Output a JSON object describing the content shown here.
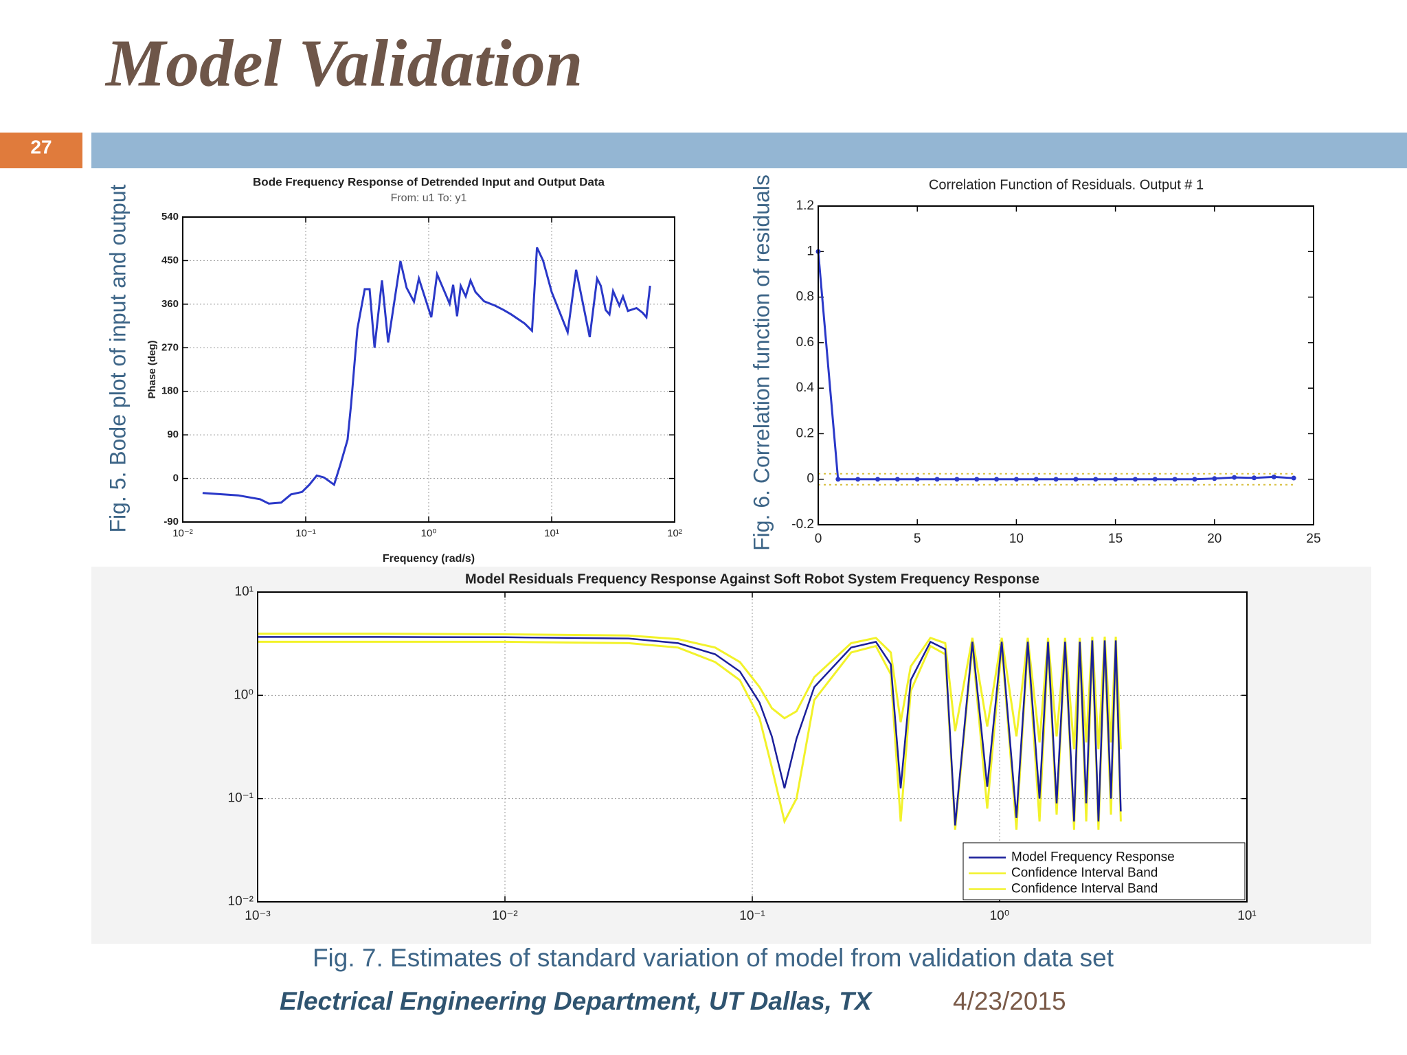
{
  "slide": {
    "title": "Model Validation",
    "number": 27,
    "figure_captions": [
      "Fig. 5. Bode plot of input and output",
      "Fig. 6. Correlation function of residuals",
      "Fig. 7. Estimates of standard variation of model from validation data set"
    ],
    "footer": "Electrical Engineering Department, UT Dallas, TX",
    "date": "4/23/2015"
  },
  "chart_data": [
    {
      "type": "line",
      "title": "Bode Frequency Response of Detrended Input and Output Data",
      "subtitle": "From: u1  To: y1",
      "x_label": "Frequency  (rad/s)",
      "y_label": "Phase (deg)",
      "xscale": "log",
      "grid": true,
      "xlim": [
        0.01,
        100
      ],
      "xticks": [
        {
          "value": 0.01,
          "label": "10⁻²"
        },
        {
          "value": 0.1,
          "label": "10⁻¹"
        },
        {
          "value": 1,
          "label": "10⁰"
        },
        {
          "value": 10,
          "label": "10¹"
        },
        {
          "value": 100,
          "label": "10²"
        }
      ],
      "ylim": [
        -90,
        540
      ],
      "yticks": [
        -90,
        0,
        90,
        180,
        270,
        360,
        450,
        540
      ],
      "x": [
        0.0145,
        0.0282,
        0.0427,
        0.0501,
        0.0631,
        0.0759,
        0.0933,
        0.107,
        0.123,
        0.141,
        0.17,
        0.191,
        0.219,
        0.234,
        0.263,
        0.302,
        0.331,
        0.363,
        0.417,
        0.468,
        0.589,
        0.661,
        0.759,
        0.832,
        1.05,
        1.17,
        1.35,
        1.48,
        1.58,
        1.7,
        1.82,
        2.0,
        2.19,
        2.4,
        2.82,
        3.47,
        4.07,
        4.68,
        6.03,
        6.92,
        7.59,
        8.51,
        10,
        13.5,
        15.8,
        20.4,
        23.4,
        25.1,
        27.5,
        29.5,
        31.6,
        35.5,
        38.0,
        41.7,
        49.0,
        55.0,
        58.9,
        63.1
      ],
      "series": [
        {
          "color": "#2a38c8",
          "values": [
            -30,
            -35,
            -43,
            -52,
            -50,
            -33,
            -28,
            -13,
            6,
            2,
            -13,
            28,
            80,
            154,
            309,
            391,
            391,
            270,
            409,
            281,
            449,
            394,
            365,
            413,
            333,
            422,
            385,
            361,
            400,
            335,
            398,
            376,
            409,
            385,
            366,
            357,
            348,
            339,
            320,
            305,
            477,
            450,
            385,
            302,
            431,
            292,
            413,
            398,
            348,
            339,
            387,
            357,
            376,
            346,
            352,
            342,
            333,
            398
          ]
        }
      ]
    },
    {
      "type": "line",
      "title": "Correlation Function of Residuals. Output # 1",
      "grid": false,
      "xlim": [
        0,
        25
      ],
      "xticks": [
        0,
        5,
        10,
        15,
        20,
        25
      ],
      "ylim": [
        -0.2,
        1.2
      ],
      "yticks": [
        -0.2,
        0,
        0.2,
        0.4,
        0.6,
        0.8,
        1,
        1.2
      ],
      "x": [
        0,
        1,
        2,
        3,
        4,
        5,
        6,
        7,
        8,
        9,
        10,
        11,
        12,
        13,
        14,
        15,
        16,
        17,
        18,
        19,
        20,
        21,
        22,
        23,
        24
      ],
      "series": [
        {
          "color": "#2a38c8",
          "marker": true,
          "values": [
            1,
            0,
            0,
            0,
            0,
            0,
            0,
            0,
            0,
            0,
            0,
            0,
            0,
            0,
            0,
            0,
            0,
            0,
            0,
            0,
            0.003,
            0.008,
            0.006,
            0.01,
            0.005
          ]
        },
        {
          "color": "#d8c040",
          "dashed": true,
          "values": [
            0.024,
            0.024,
            0.024,
            0.024,
            0.024,
            0.024,
            0.024,
            0.024,
            0.024,
            0.024,
            0.024,
            0.024,
            0.024,
            0.024,
            0.024,
            0.024,
            0.024,
            0.024,
            0.024,
            0.024,
            0.024,
            0.024,
            0.024,
            0.024,
            0.024
          ]
        },
        {
          "color": "#d8c040",
          "dashed": true,
          "values": [
            -0.024,
            -0.024,
            -0.024,
            -0.024,
            -0.024,
            -0.024,
            -0.024,
            -0.024,
            -0.024,
            -0.024,
            -0.024,
            -0.024,
            -0.024,
            -0.024,
            -0.024,
            -0.024,
            -0.024,
            -0.024,
            -0.024,
            -0.024,
            -0.024,
            -0.024,
            -0.024,
            -0.024,
            -0.024
          ]
        }
      ]
    },
    {
      "type": "line",
      "title": "Model Residuals Frequency Response Against Soft Robot System Frequency Response",
      "xscale": "log",
      "yscale": "log",
      "grid": true,
      "legend": "lower right",
      "xlim": [
        0.001,
        10
      ],
      "xticks": [
        {
          "value": 0.001,
          "label": "10⁻³"
        },
        {
          "value": 0.01,
          "label": "10⁻²"
        },
        {
          "value": 0.1,
          "label": "10⁻¹"
        },
        {
          "value": 1,
          "label": "10⁰"
        },
        {
          "value": 10,
          "label": "10¹"
        }
      ],
      "ylim": [
        0.01,
        10
      ],
      "yticks": [
        {
          "value": 0.01,
          "label": "10⁻²"
        },
        {
          "value": 0.1,
          "label": "10⁻¹"
        },
        {
          "value": 1,
          "label": "10⁰"
        },
        {
          "value": 10,
          "label": "10¹"
        }
      ],
      "x": [
        0.001,
        0.00316,
        0.01,
        0.0316,
        0.0501,
        0.0708,
        0.0891,
        0.107,
        0.12,
        0.135,
        0.151,
        0.178,
        0.251,
        0.316,
        0.363,
        0.398,
        0.437,
        0.525,
        0.603,
        0.661,
        0.776,
        0.891,
        1.02,
        1.17,
        1.3,
        1.45,
        1.57,
        1.7,
        1.84,
        2.0,
        2.11,
        2.24,
        2.37,
        2.51,
        2.66,
        2.82,
        2.95,
        3.09
      ],
      "series": [
        {
          "name": "Confidence Interval Band",
          "color": "#f2f22a",
          "values": [
            3.95,
            3.95,
            3.9,
            3.8,
            3.5,
            2.9,
            2.1,
            1.2,
            0.75,
            0.6,
            0.7,
            1.5,
            3.2,
            3.6,
            2.6,
            0.55,
            1.9,
            3.6,
            3.2,
            0.45,
            3.6,
            0.5,
            3.6,
            0.4,
            3.6,
            0.35,
            3.6,
            0.4,
            3.6,
            0.3,
            3.6,
            0.35,
            3.7,
            0.3,
            3.7,
            0.35,
            3.7,
            0.3
          ]
        },
        {
          "name": "Confidence Interval Band",
          "color": "#f2f22a",
          "values": [
            3.3,
            3.3,
            3.3,
            3.2,
            2.9,
            2.1,
            1.4,
            0.6,
            0.2,
            0.06,
            0.1,
            0.9,
            2.6,
            3.0,
            1.6,
            0.06,
            1.1,
            3.0,
            2.5,
            0.05,
            3.0,
            0.08,
            3.0,
            0.05,
            3.0,
            0.06,
            3.0,
            0.07,
            3.0,
            0.05,
            3.0,
            0.06,
            3.1,
            0.05,
            3.1,
            0.07,
            3.1,
            0.06
          ]
        },
        {
          "name": "Model Frequency Response",
          "color": "#1a1f9a",
          "values": [
            3.67,
            3.67,
            3.65,
            3.55,
            3.2,
            2.5,
            1.7,
            0.85,
            0.4,
            0.126,
            0.38,
            1.2,
            2.9,
            3.3,
            2.0,
            0.126,
            1.4,
            3.3,
            2.8,
            0.055,
            3.3,
            0.13,
            3.3,
            0.065,
            3.3,
            0.1,
            3.3,
            0.09,
            3.3,
            0.06,
            3.3,
            0.09,
            3.4,
            0.06,
            3.4,
            0.1,
            3.4,
            0.075
          ]
        }
      ]
    }
  ]
}
